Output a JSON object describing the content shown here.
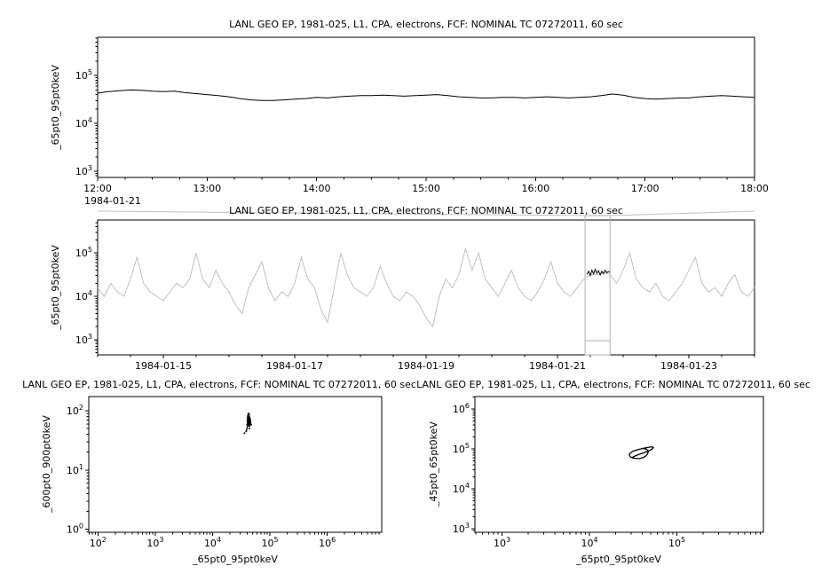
{
  "page": {
    "background": "#ffffff",
    "text_color": "#000000",
    "context_series_color": "#c0c0c0",
    "zoom_box_color": "#b0b0b0"
  },
  "chart_data": [
    {
      "type": "line",
      "title": "LANL GEO EP, 1981-025, L1, CPA, electrons, FCF: NOMINAL TC 07272011, 60 sec",
      "ylabel": "_65pt0_95pt0keV",
      "corner_label": "1984-01-21",
      "x_axis": {
        "scale": "linear",
        "min": 12,
        "max": 18,
        "major": [
          12,
          13,
          14,
          15,
          16,
          17,
          18
        ],
        "labels": [
          "12:00",
          "13:00",
          "14:00",
          "15:00",
          "16:00",
          "17:00",
          "18:00"
        ],
        "minor_step": 0.25
      },
      "y_axis": {
        "scale": "log",
        "min": 2.87,
        "max": 5.8,
        "major": [
          3,
          4,
          5
        ]
      },
      "series": [
        {
          "name": "electron-flux-65-95keV-zoomed",
          "color": "#000000",
          "x_start": 12.0,
          "x_step": 0.1,
          "values": [
            43000,
            46000,
            48000,
            50000,
            49000,
            47000,
            46000,
            47000,
            44000,
            42000,
            40000,
            38000,
            36000,
            33000,
            31000,
            30000,
            30000,
            31000,
            32000,
            33000,
            35000,
            34000,
            36000,
            37000,
            38000,
            38000,
            39000,
            38000,
            37000,
            38000,
            39000,
            40000,
            38000,
            36000,
            35000,
            34000,
            34000,
            35000,
            35000,
            34000,
            35000,
            36000,
            35000,
            34000,
            35000,
            36000,
            38000,
            41000,
            39000,
            35000,
            33000,
            32000,
            33000,
            34000,
            34000,
            36000,
            37000,
            38000,
            37000,
            36000,
            35000
          ]
        }
      ]
    },
    {
      "type": "line",
      "title": "LANL GEO EP, 1981-025, L1, CPA, electrons, FCF: NOMINAL TC 07272011, 60 sec",
      "ylabel": "_65pt0_95pt0keV",
      "x_axis": {
        "scale": "linear",
        "min": 14,
        "max": 24,
        "major": [
          15,
          17,
          19,
          21,
          23
        ],
        "labels": [
          "1984-01-15",
          "1984-01-17",
          "1984-01-19",
          "1984-01-21",
          "1984-01-23"
        ],
        "minor_step": 0.5
      },
      "y_axis": {
        "scale": "log",
        "min": 2.65,
        "max": 5.76,
        "major": [
          3,
          4,
          5
        ]
      },
      "highlight_region": {
        "x_start": 21.42,
        "x_end": 21.8
      },
      "series": [
        {
          "name": "electron-flux-65-95keV-context",
          "color": "#c0c0c0",
          "x_start": 14.0,
          "x_step": 0.1,
          "values": [
            15800,
            10000,
            20000,
            12600,
            10000,
            25000,
            79000,
            20000,
            12600,
            10000,
            7900,
            12600,
            20000,
            15800,
            25000,
            100000,
            25000,
            15800,
            40000,
            20000,
            12600,
            6300,
            4000,
            15800,
            31600,
            63000,
            15800,
            7900,
            12600,
            10000,
            20000,
            79000,
            25000,
            15800,
            5000,
            2500,
            15800,
            100000,
            31600,
            15800,
            12600,
            10000,
            15800,
            50000,
            20000,
            10000,
            7900,
            12600,
            10000,
            6300,
            3200,
            2000,
            10000,
            25000,
            15800,
            31600,
            126000,
            40000,
            100000,
            25000,
            15800,
            10000,
            20000,
            40000,
            15800,
            10000,
            7900,
            12600,
            25000,
            63000,
            20000,
            12600,
            10000,
            15800,
            25000,
            31600,
            31600,
            35500,
            31600,
            20000,
            40000,
            100000,
            25000,
            15800,
            12600,
            20000,
            10000,
            7900,
            12600,
            20000,
            40000,
            79000,
            20000,
            12600,
            15800,
            10000,
            20000,
            31600,
            12600,
            10000,
            15800
          ]
        },
        {
          "name": "electron-flux-65-95keV-selected-interval",
          "color": "#000000",
          "x_start": 21.45,
          "x_step": 0.025,
          "values": [
            32000,
            38000,
            30000,
            40000,
            33000,
            42000,
            34000,
            39000,
            31000,
            38000,
            33000,
            40000,
            35000,
            37000,
            36000
          ]
        }
      ]
    },
    {
      "type": "scatter",
      "title": "LANL GEO EP, 1981-025, L1, CPA, electrons, FCF: NOMINAL TC 07272011, 60 sec",
      "xlabel": "_65pt0_95pt0keV",
      "ylabel": "_600pt0_900pt0keV",
      "x_axis": {
        "scale": "log",
        "min": 1.84,
        "max": 6.95,
        "major": [
          2,
          3,
          4,
          5,
          6
        ]
      },
      "y_axis": {
        "scale": "log",
        "min": -0.05,
        "max": 2.24,
        "major": [
          0,
          1,
          2
        ]
      },
      "points": [
        [
          41000,
          62
        ],
        [
          42000,
          68
        ],
        [
          43000,
          75
        ],
        [
          40000,
          58
        ],
        [
          44000,
          70
        ],
        [
          45000,
          65
        ],
        [
          42500,
          80
        ],
        [
          41500,
          72
        ],
        [
          43500,
          66
        ],
        [
          44500,
          60
        ],
        [
          40500,
          77
        ],
        [
          42000,
          85
        ],
        [
          43000,
          58
        ],
        [
          41000,
          64
        ],
        [
          44000,
          74
        ],
        [
          45500,
          69
        ],
        [
          42800,
          61
        ],
        [
          41800,
          79
        ],
        [
          43200,
          71
        ],
        [
          44200,
          63
        ],
        [
          40800,
          67
        ],
        [
          42300,
          73
        ],
        [
          43700,
          57
        ],
        [
          41200,
          82
        ],
        [
          44700,
          66
        ],
        [
          45200,
          60
        ],
        [
          42100,
          76
        ],
        [
          41600,
          68
        ],
        [
          43400,
          62
        ],
        [
          44400,
          72
        ],
        [
          40300,
          59
        ],
        [
          42600,
          70
        ],
        [
          43900,
          78
        ],
        [
          41400,
          65
        ],
        [
          44100,
          55
        ],
        [
          45800,
          62
        ],
        [
          42900,
          74
        ],
        [
          41900,
          60
        ],
        [
          43100,
          69
        ],
        [
          44300,
          77
        ],
        [
          39500,
          48
        ],
        [
          40000,
          52
        ],
        [
          46000,
          64
        ],
        [
          38500,
          45
        ],
        [
          42000,
          90
        ],
        [
          43000,
          84
        ],
        [
          44000,
          50
        ],
        [
          41000,
          55
        ],
        [
          45000,
          73
        ],
        [
          42500,
          67
        ],
        [
          36000,
          42
        ],
        [
          47000,
          58
        ],
        [
          43500,
          88
        ],
        [
          40500,
          71
        ],
        [
          42200,
          63
        ]
      ]
    },
    {
      "type": "scatter-line",
      "title": "LANL GEO EP, 1981-025, L1, CPA, electrons, FCF: NOMINAL TC 07272011, 60 sec",
      "xlabel": "_65pt0_95pt0keV",
      "ylabel": "_45pt0_65pt0keV",
      "x_axis": {
        "scale": "log",
        "min": 2.69,
        "max": 5.99,
        "major": [
          3,
          4,
          5
        ]
      },
      "y_axis": {
        "scale": "log",
        "min": 2.91,
        "max": 6.31,
        "major": [
          3,
          4,
          5,
          6
        ]
      },
      "points": [
        [
          32000,
          58000
        ],
        [
          29000,
          64000
        ],
        [
          28500,
          74000
        ],
        [
          31000,
          86000
        ],
        [
          36000,
          96000
        ],
        [
          42000,
          104000
        ],
        [
          48000,
          110000
        ],
        [
          52000,
          112000
        ],
        [
          54000,
          108000
        ],
        [
          52000,
          98000
        ],
        [
          47000,
          88000
        ],
        [
          41000,
          79000
        ],
        [
          36000,
          71000
        ],
        [
          32500,
          65000
        ],
        [
          31000,
          61000
        ],
        [
          33000,
          58000
        ],
        [
          37000,
          57000
        ],
        [
          41000,
          60000
        ],
        [
          44000,
          66000
        ],
        [
          46000,
          74000
        ],
        [
          47000,
          83000
        ],
        [
          46500,
          92000
        ],
        [
          44000,
          99000
        ],
        [
          40000,
          103000
        ]
      ]
    }
  ]
}
